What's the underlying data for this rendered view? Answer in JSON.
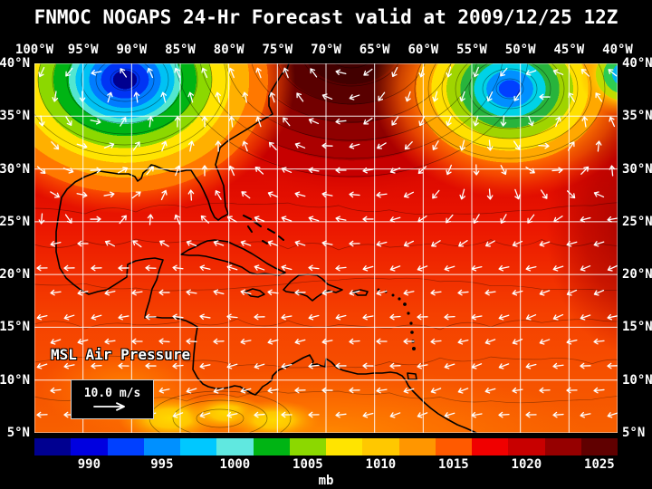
{
  "title": "FNMOC NOGAPS 24-Hr Forecast valid at 2009/12/25 12Z",
  "map": {
    "field_label": "MSL Air Pressure",
    "wind_legend_label": "10.0 m/s",
    "lon_labels": [
      "100°W",
      "95°W",
      "90°W",
      "85°W",
      "80°W",
      "75°W",
      "70°W",
      "65°W",
      "60°W",
      "55°W",
      "50°W",
      "45°W",
      "40°W"
    ],
    "lat_labels": [
      "40°N",
      "35°N",
      "30°N",
      "25°N",
      "20°N",
      "15°N",
      "10°N",
      "5°N"
    ]
  },
  "colorbar": {
    "unit_label": "mb",
    "tick_labels": [
      "990",
      "995",
      "1000",
      "1005",
      "1010",
      "1015",
      "1020",
      "1025"
    ],
    "segment_colors": [
      "#000090",
      "#0000e0",
      "#0040ff",
      "#0090ff",
      "#00c8ff",
      "#60e8e0",
      "#00b414",
      "#8cd800",
      "#ffe400",
      "#ffc800",
      "#ff9600",
      "#ff5a00",
      "#f00000",
      "#c80000",
      "#960000",
      "#600000"
    ]
  },
  "chart_data": {
    "type": "heatmap",
    "title": "FNMOC NOGAPS 24-Hr Forecast valid at 2009/12/25 12Z",
    "source": "FNMOC",
    "model": "NOGAPS",
    "forecast": "24-Hr",
    "valid_time": "2009/12/25 12Z",
    "variable": "MSL Air Pressure",
    "units": "mb",
    "x_ticks": [
      "100°W",
      "95°W",
      "90°W",
      "85°W",
      "80°W",
      "75°W",
      "70°W",
      "65°W",
      "60°W",
      "55°W",
      "50°W",
      "45°W",
      "40°W"
    ],
    "y_ticks": [
      "40°N",
      "35°N",
      "30°N",
      "25°N",
      "20°N",
      "15°N",
      "10°N",
      "5°N"
    ],
    "lon_range_deg_w": [
      100,
      40
    ],
    "lat_range_deg_n": [
      5,
      40
    ],
    "grid_interval_deg": 5,
    "colorbar_ticks_mb": [
      990,
      995,
      1000,
      1005,
      1010,
      1015,
      1020,
      1025
    ],
    "colorbar_step_mb": 2.5,
    "wind_reference": "10.0 m/s",
    "overlay": "wind vectors (white arrows), isobars (black contours), coastlines (black)",
    "pressure_features": [
      {
        "feature": "low_pressure_center",
        "approx_lon": "91°W",
        "approx_lat": "38°N",
        "approx_center_mb": 990
      },
      {
        "feature": "low_pressure_center",
        "approx_lon": "51°W",
        "approx_lat": "37°N",
        "approx_center_mb": 997
      },
      {
        "feature": "high_pressure_ridge",
        "approx_lon": "67°W",
        "approx_lat": "40°N",
        "approx_center_mb": 1027
      },
      {
        "feature": "weak_low_trough",
        "approx_lon": "81°W",
        "approx_lat": "6°N",
        "approx_center_mb": 1007
      },
      {
        "feature": "broad_tropical_field",
        "approx_lon": "70°W",
        "approx_lat": "5°N–20°N",
        "approx_center_mb": 1011
      }
    ]
  }
}
